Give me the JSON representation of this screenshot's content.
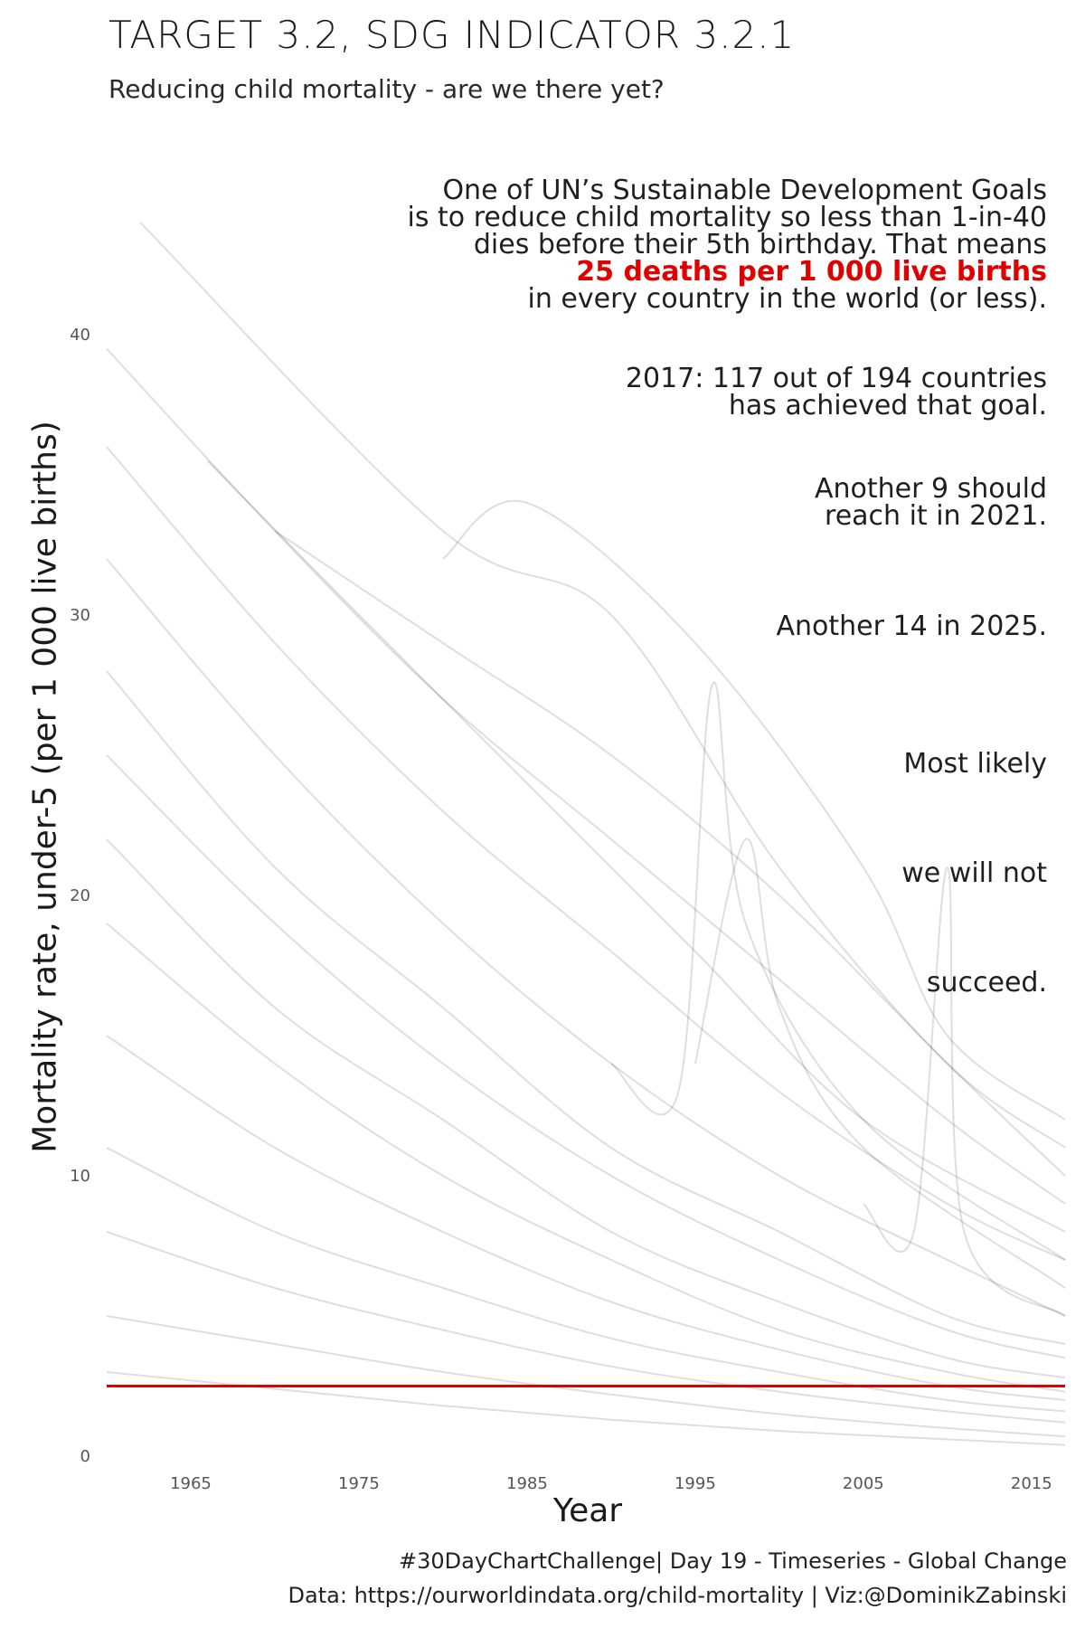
{
  "header": {
    "title": "TARGET 3.2, SDG INDICATOR 3.2.1",
    "subtitle": "Reducing child mortality - are we there yet?"
  },
  "annotations": {
    "intro": {
      "line1": "One of UN’s Sustainable Development Goals",
      "line2": "is to reduce child mortality so less than 1-in-40",
      "line3": "dies before their 5th birthday. That means",
      "highlight": "25 deaths per 1 000 live births",
      "line5": "in every country in the world (or less)."
    },
    "achieved": {
      "line1": "2017: 117 out of 194 countries",
      "line2": "has achieved that goal."
    },
    "next": {
      "line1": "Another 9 should",
      "line2": "reach it in 2021."
    },
    "later": "Another 14 in 2025.",
    "most_likely": "Most likely",
    "we_will_not": "we will not",
    "succeed": "succeed."
  },
  "caption": {
    "line1": "#30DayChartChallenge| Day 19 - Timeseries - Global Change",
    "line2": "Data: https://ourworldindata.org/child-mortality | Viz:@DominikZabinski"
  },
  "colors": {
    "target_line": "#e00000",
    "series": "#000000",
    "highlight_text": "#e00000"
  },
  "chart_data": {
    "type": "line",
    "xlabel": "Year",
    "ylabel": "Mortality rate, under-5 (per 1 000 live births)",
    "x_ticks": [
      1965,
      1975,
      1985,
      1995,
      2005,
      2015
    ],
    "y_ticks": [
      0,
      10,
      20,
      30,
      40
    ],
    "xlim": [
      1960,
      2017
    ],
    "ylim": [
      0,
      40
    ],
    "grid": false,
    "legend": "none",
    "reference_line": {
      "y": 2.5,
      "color": "#e00000"
    },
    "series_representative": [
      {
        "years": [
          1962,
          1980,
          1990,
          2000,
          2010,
          2017
        ],
        "values": [
          44,
          33,
          30,
          21,
          14,
          11
        ]
      },
      {
        "years": [
          1960,
          1970,
          1980,
          1990,
          2000,
          2010,
          2017
        ],
        "values": [
          39.5,
          33,
          27,
          22,
          17,
          12,
          9
        ]
      },
      {
        "years": [
          1960,
          1970,
          1980,
          1990,
          2000,
          2010,
          2017
        ],
        "values": [
          36,
          29,
          23,
          18,
          13,
          9,
          7
        ]
      },
      {
        "years": [
          1960,
          1970,
          1980,
          1990,
          2000,
          2010,
          2017
        ],
        "values": [
          32,
          25,
          19,
          14,
          10,
          7,
          5
        ]
      },
      {
        "years": [
          1960,
          1970,
          1980,
          1990,
          2000,
          2010,
          2017
        ],
        "values": [
          28,
          21,
          16,
          11,
          8,
          5,
          4
        ]
      },
      {
        "years": [
          1960,
          1970,
          1980,
          1990,
          2000,
          2010,
          2017
        ],
        "values": [
          25,
          19,
          14,
          10,
          7,
          4.5,
          3.5
        ]
      },
      {
        "years": [
          1960,
          1970,
          1980,
          1990,
          2000,
          2010,
          2017
        ],
        "values": [
          22,
          16,
          12,
          8,
          5.5,
          3.5,
          2.8
        ]
      },
      {
        "years": [
          1960,
          1970,
          1980,
          1990,
          2000,
          2010,
          2017
        ],
        "values": [
          19,
          14,
          10,
          7,
          4.5,
          3,
          2.3
        ]
      },
      {
        "years": [
          1960,
          1970,
          1980,
          1990,
          2000,
          2010,
          2017
        ],
        "values": [
          15,
          11,
          8,
          5.5,
          3.8,
          2.5,
          2
        ]
      },
      {
        "years": [
          1960,
          1970,
          1980,
          1990,
          2000,
          2010,
          2017
        ],
        "values": [
          11,
          8,
          6,
          4.2,
          3,
          2,
          1.6
        ]
      },
      {
        "years": [
          1960,
          1970,
          1980,
          1990,
          2000,
          2010,
          2017
        ],
        "values": [
          8,
          6,
          4.5,
          3.2,
          2.3,
          1.6,
          1.2
        ]
      },
      {
        "years": [
          1960,
          1970,
          1980,
          1990,
          2000,
          2010,
          2017
        ],
        "values": [
          5,
          4,
          3,
          2.2,
          1.5,
          1,
          0.7
        ]
      },
      {
        "years": [
          1960,
          1970,
          1980,
          1990,
          2000,
          2010,
          2017
        ],
        "values": [
          3,
          2.4,
          1.8,
          1.3,
          0.9,
          0.6,
          0.4
        ]
      },
      {
        "years": [
          1980,
          1985,
          1995,
          2005,
          2010,
          2017
        ],
        "values": [
          32,
          34,
          29,
          21,
          15,
          12
        ]
      },
      {
        "years": [
          1990,
          1994,
          1996,
          1998,
          2005,
          2017
        ],
        "values": [
          14,
          13,
          27.5,
          19,
          12,
          7
        ]
      },
      {
        "years": [
          1995,
          1998,
          2000,
          2005,
          2017
        ],
        "values": [
          14,
          22,
          16,
          11,
          6
        ]
      },
      {
        "years": [
          2005,
          2008,
          2010,
          2011,
          2017
        ],
        "values": [
          9,
          8,
          21,
          8,
          5
        ]
      },
      {
        "years": [
          1966,
          1975,
          1985,
          1995,
          2005,
          2017
        ],
        "values": [
          35.5,
          30,
          24,
          18,
          12,
          8
        ]
      },
      {
        "years": [
          1970,
          1980,
          1990,
          2000,
          2010,
          2017
        ],
        "values": [
          33,
          29,
          25,
          20,
          14,
          10
        ]
      }
    ]
  }
}
